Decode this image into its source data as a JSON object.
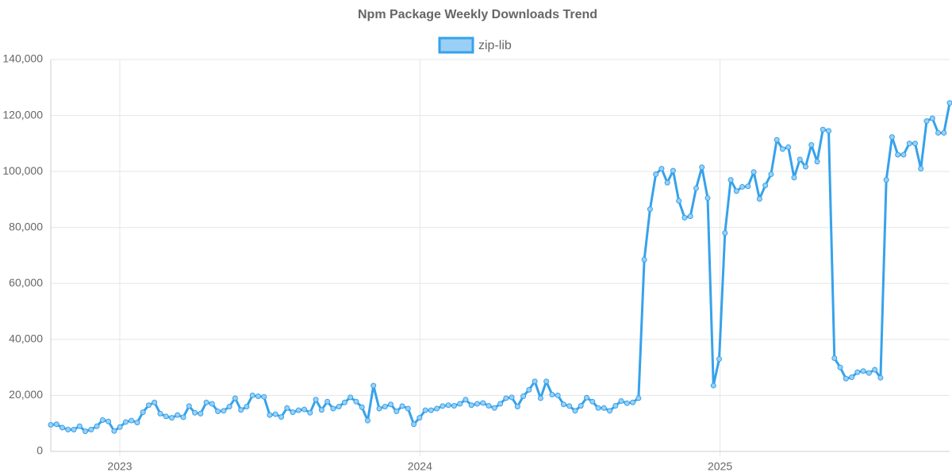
{
  "chart_data": {
    "type": "line",
    "title": "Npm Package Weekly Downloads Trend",
    "x": [
      2022.77,
      2022.7892,
      2022.8084,
      2022.8276,
      2022.8468,
      2022.866,
      2022.8852,
      2022.9044,
      2022.9236,
      2022.9428,
      2022.962,
      2022.9812,
      2023.0004,
      2023.0196,
      2023.0388,
      2023.058,
      2023.0772,
      2023.0964,
      2023.1156,
      2023.1348,
      2023.154,
      2023.1732,
      2023.1924,
      2023.2116,
      2023.2308,
      2023.25,
      2023.2692,
      2023.2884,
      2023.3076,
      2023.3268,
      2023.346,
      2023.3652,
      2023.3844,
      2023.4036,
      2023.4228,
      2023.442,
      2023.4612,
      2023.4804,
      2023.4996,
      2023.5188,
      2023.538,
      2023.5572,
      2023.5764,
      2023.5956,
      2023.6148,
      2023.634,
      2023.6532,
      2023.6724,
      2023.6916,
      2023.7108,
      2023.73,
      2023.7492,
      2023.7684,
      2023.7876,
      2023.8068,
      2023.826,
      2023.8452,
      2023.8644,
      2023.8836,
      2023.9028,
      2023.922,
      2023.9412,
      2023.9604,
      2023.9796,
      2023.9988,
      2024.018,
      2024.0372,
      2024.0564,
      2024.0756,
      2024.0948,
      2024.114,
      2024.1332,
      2024.1524,
      2024.1716,
      2024.1908,
      2024.21,
      2024.2292,
      2024.2484,
      2024.2676,
      2024.2868,
      2024.306,
      2024.3252,
      2024.3444,
      2024.3636,
      2024.3828,
      2024.402,
      2024.4212,
      2024.4404,
      2024.4596,
      2024.4788,
      2024.498,
      2024.5172,
      2024.5364,
      2024.5556,
      2024.5748,
      2024.594,
      2024.6132,
      2024.6324,
      2024.6516,
      2024.6708,
      2024.69,
      2024.7092,
      2024.7284,
      2024.7476,
      2024.7668,
      2024.786,
      2024.8052,
      2024.8244,
      2024.8436,
      2024.8628,
      2024.882,
      2024.9012,
      2024.9204,
      2024.9396,
      2024.9588,
      2024.978,
      2024.9972,
      2025.0164,
      2025.0356,
      2025.0548,
      2025.074,
      2025.0932,
      2025.1124,
      2025.1316,
      2025.1508,
      2025.17,
      2025.1892,
      2025.2084,
      2025.2276,
      2025.2468,
      2025.266,
      2025.2852,
      2025.3044,
      2025.3236,
      2025.3428,
      2025.362,
      2025.3812,
      2025.4004,
      2025.4196,
      2025.4388,
      2025.458,
      2025.4772,
      2025.4964,
      2025.5156,
      2025.5348,
      2025.554,
      2025.5732,
      2025.5924,
      2025.6116,
      2025.6308,
      2025.65,
      2025.6692,
      2025.6884,
      2025.7076,
      2025.7268,
      2025.746,
      2025.7652
    ],
    "series": [
      {
        "name": "zip-lib",
        "color": "#36a2eb",
        "fill": "#9ad0f5",
        "values": [
          9500,
          9700,
          8500,
          7800,
          7800,
          9000,
          7200,
          7800,
          9000,
          11200,
          10700,
          7300,
          8700,
          10500,
          11000,
          10300,
          14000,
          16500,
          17500,
          13500,
          12500,
          12000,
          13000,
          12200,
          16200,
          13800,
          13500,
          17500,
          17000,
          14300,
          14500,
          16000,
          19000,
          14800,
          16000,
          20000,
          19700,
          19500,
          13000,
          13300,
          12300,
          15500,
          14000,
          14700,
          15000,
          13800,
          18500,
          14800,
          17800,
          15300,
          16000,
          17500,
          19300,
          17800,
          15800,
          11000,
          23500,
          15300,
          16000,
          16800,
          14300,
          16200,
          15300,
          9700,
          12000,
          14700,
          14700,
          15300,
          16200,
          16500,
          16300,
          17000,
          18500,
          16500,
          17000,
          17300,
          16300,
          15500,
          17000,
          19000,
          19300,
          16000,
          19700,
          22000,
          25000,
          19000,
          25000,
          20300,
          20000,
          16800,
          16200,
          14500,
          16300,
          19200,
          17800,
          15500,
          15500,
          14500,
          16300,
          18000,
          17200,
          17500,
          19000,
          68500,
          86500,
          99000,
          101000,
          96000,
          100300,
          89500,
          83500,
          84000,
          94000,
          101500,
          90500,
          23500,
          33000,
          78000,
          97000,
          93000,
          94500,
          94700,
          99800,
          90200,
          95000,
          99000,
          111300,
          108000,
          108700,
          97800,
          104300,
          101700,
          109500,
          103500,
          115000,
          114500,
          33300,
          30000,
          26000,
          26500,
          28300,
          28700,
          28000,
          29200,
          26300,
          97000,
          112300,
          106000,
          106000,
          110000,
          110000,
          101000,
          118000,
          119000,
          113800,
          113800,
          124500
        ]
      }
    ],
    "xlim": [
      2022.77,
      2025.765
    ],
    "xticks": [
      2023,
      2024,
      2025
    ],
    "ylim": [
      0,
      140000
    ],
    "yticks": [
      0,
      {
        "value": 20000,
        "label": "20,000"
      },
      {
        "value": 40000,
        "label": "40,000"
      },
      {
        "value": 60000,
        "label": "60,000"
      },
      {
        "value": 80000,
        "label": "80,000"
      },
      {
        "value": 100000,
        "label": "100,000"
      },
      {
        "value": 120000,
        "label": "120,000"
      },
      {
        "value": 140000,
        "label": "140,000"
      }
    ],
    "grid": true,
    "legend": "top"
  }
}
